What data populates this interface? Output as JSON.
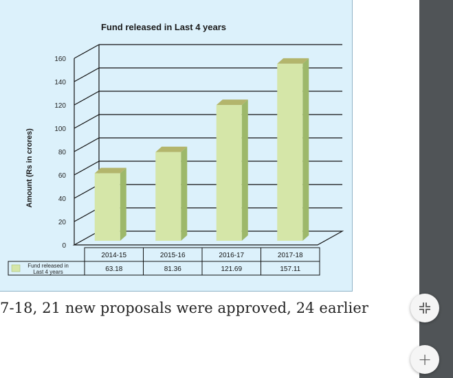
{
  "chart_data": {
    "type": "bar",
    "title": "Fund released in Last 4 years",
    "ylabel": "Amount (Rs in crores)",
    "xlabel": "",
    "categories": [
      "2014-15",
      "2015-16",
      "2016-17",
      "2017-18"
    ],
    "series": [
      {
        "name": "Fund released in Last 4 years",
        "values": [
          63.18,
          81.36,
          121.69,
          157.11
        ]
      }
    ],
    "value_labels": [
      "63.18",
      "81.36",
      "121.69",
      "157.11"
    ],
    "ylim": [
      0,
      160
    ],
    "yticks": [
      0,
      20,
      40,
      60,
      80,
      100,
      120,
      140,
      160
    ],
    "grid": true,
    "style": "3d-bar-with-data-table",
    "colors": {
      "bar_front": "#d5e6a8",
      "bar_side": "#9db86a",
      "bar_top": "#b3b56c",
      "background": "#dcf1fb"
    }
  },
  "body_text": "7-18, 21 new proposals were approved, 24 earlier",
  "controls": {
    "fit_icon": "fit-page-icon",
    "zoom_in_label": "+"
  }
}
